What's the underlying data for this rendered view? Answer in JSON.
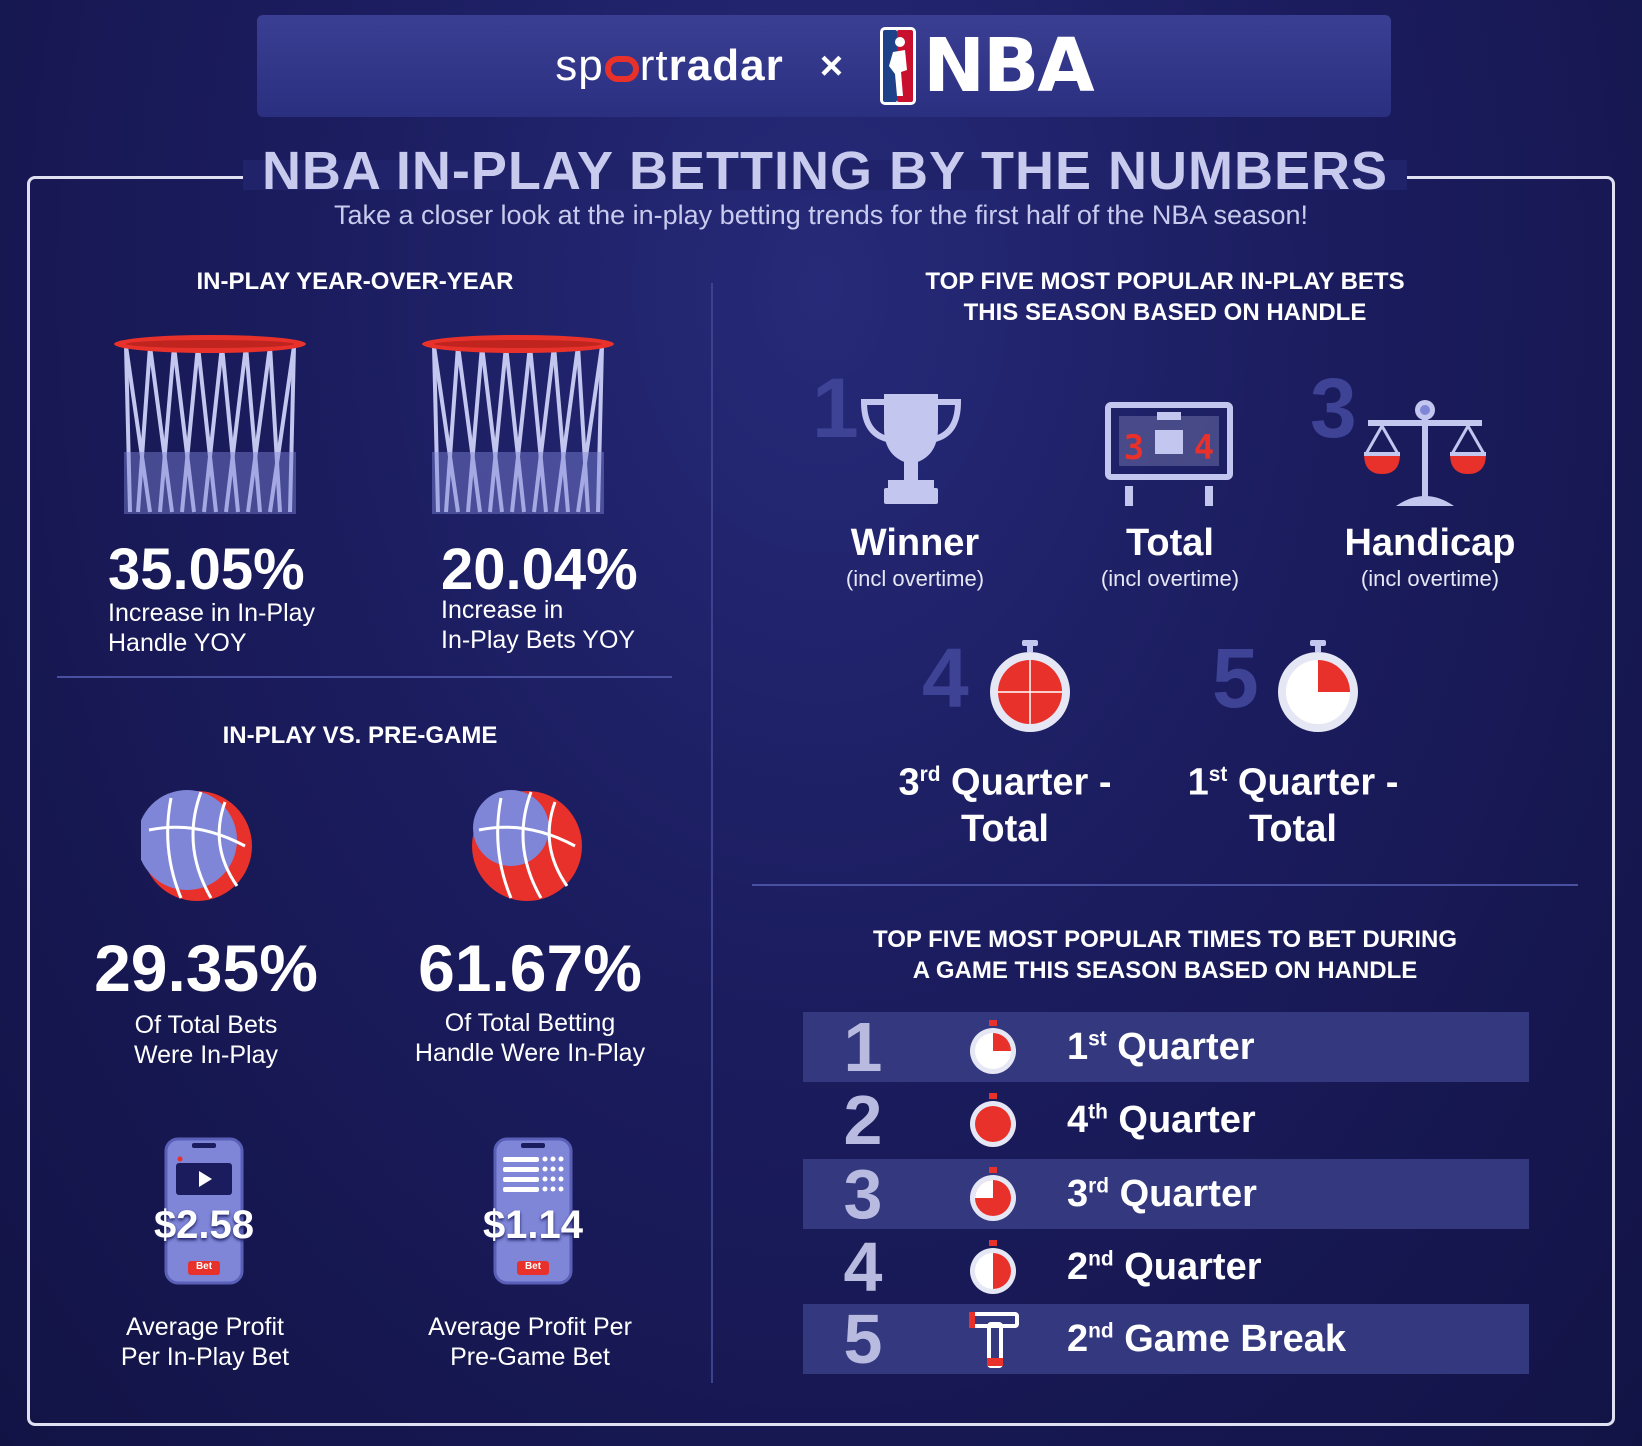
{
  "header": {
    "sportradar_pre": "sp",
    "sportradar_mid": "rt",
    "sportradar_bold": "radar",
    "cross": "×",
    "nba": "NBA"
  },
  "title": "NBA IN-PLAY BETTING BY THE NUMBERS",
  "subtitle": "Take a closer look at the in-play betting trends for the first half of the NBA season!",
  "yoy": {
    "heading": "IN-PLAY YEAR-OVER-YEAR",
    "stats": [
      {
        "value": "35.05%",
        "desc_line1": "Increase in In-Play",
        "desc_line2": "Handle YOY"
      },
      {
        "value": "20.04%",
        "desc_line1": "Increase in",
        "desc_line2": "In-Play Bets YOY"
      }
    ]
  },
  "vs": {
    "heading": "IN-PLAY VS. PRE-GAME",
    "stats": [
      {
        "value": "29.35%",
        "desc_line1": "Of Total Bets",
        "desc_line2": "Were In-Play",
        "share": 0.2935
      },
      {
        "value": "61.67%",
        "desc_line1": "Of Total Betting",
        "desc_line2": "Handle Were In-Play",
        "share": 0.6167
      }
    ],
    "profits": [
      {
        "value": "$2.58",
        "badge": "Bet",
        "desc_line1": "Average Profit",
        "desc_line2": "Per In-Play Bet"
      },
      {
        "value": "$1.14",
        "badge": "Bet",
        "desc_line1": "Average Profit Per",
        "desc_line2": "Pre-Game Bet"
      }
    ]
  },
  "bets": {
    "heading_line1": "TOP FIVE MOST POPULAR IN-PLAY BETS",
    "heading_line2": "THIS SEASON BASED ON HANDLE",
    "items": [
      {
        "rank": "1",
        "label": "Winner",
        "sub": "(incl overtime)"
      },
      {
        "rank": "2",
        "label": "Total",
        "sub": "(incl overtime)",
        "score_left": "3",
        "score_right": "4"
      },
      {
        "rank": "3",
        "label": "Handicap",
        "sub": "(incl overtime)"
      },
      {
        "rank": "4",
        "label_num": "3",
        "label_sup": "rd",
        "label_rest": " Quarter -",
        "label_line2": "Total"
      },
      {
        "rank": "5",
        "label_num": "1",
        "label_sup": "st",
        "label_rest": " Quarter -",
        "label_line2": "Total"
      }
    ]
  },
  "times": {
    "heading_line1": "TOP FIVE MOST POPULAR TIMES TO BET DURING",
    "heading_line2": "A GAME THIS SEASON BASED ON HANDLE",
    "rows": [
      {
        "rank": "1",
        "num": "1",
        "sup": "st",
        "rest": " Quarter"
      },
      {
        "rank": "2",
        "num": "4",
        "sup": "th",
        "rest": " Quarter"
      },
      {
        "rank": "3",
        "num": "3",
        "sup": "rd",
        "rest": " Quarter"
      },
      {
        "rank": "4",
        "num": "2",
        "sup": "nd",
        "rest": " Quarter"
      },
      {
        "rank": "5",
        "num": "2",
        "sup": "nd",
        "rest": " Game Break"
      }
    ]
  },
  "colors": {
    "accent_red": "#e8312a",
    "navy": "#1b1c5e",
    "lavender": "#c9cbee",
    "ball_blue": "#7f86d8"
  }
}
